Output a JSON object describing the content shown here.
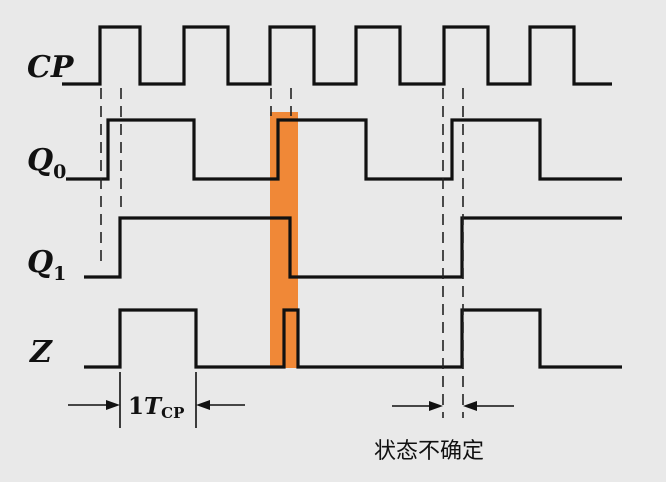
{
  "signals": {
    "cp": {
      "label": "CP",
      "sub": ""
    },
    "q0": {
      "label": "Q",
      "sub": "0"
    },
    "q1": {
      "label": "Q",
      "sub": "1"
    },
    "z": {
      "label": "Z",
      "sub": ""
    }
  },
  "annotations": {
    "period_prefix": "1",
    "period_symbol": "T",
    "period_sub": "CP",
    "uncertain_state": "状态不确定"
  },
  "colors": {
    "highlight": "#f07a1e",
    "wave": "#111111",
    "background": "#e9e9e9"
  }
}
